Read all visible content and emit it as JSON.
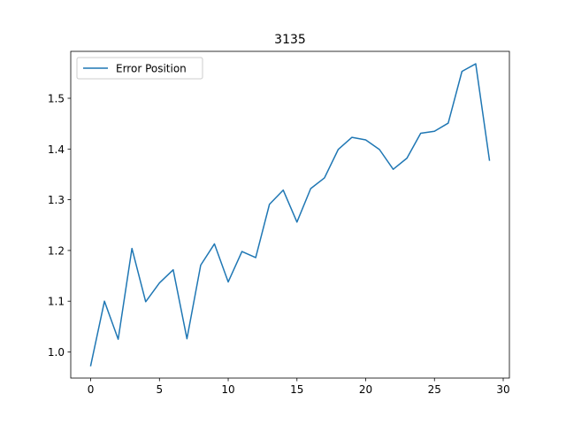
{
  "chart_data": {
    "type": "line",
    "title": "3135",
    "xlabel": "",
    "ylabel": "",
    "xlim": [
      -1.45,
      30.45
    ],
    "ylim": [
      0.9485,
      1.5925
    ],
    "xticks": [
      0,
      5,
      10,
      15,
      20,
      25,
      30
    ],
    "xtick_labels": [
      "0",
      "5",
      "10",
      "15",
      "20",
      "25",
      "30"
    ],
    "yticks": [
      1.0,
      1.1,
      1.2,
      1.3,
      1.4,
      1.5
    ],
    "ytick_labels": [
      "1.0",
      "1.1",
      "1.2",
      "1.3",
      "1.4",
      "1.5"
    ],
    "grid": false,
    "legend_position": "upper left",
    "series": [
      {
        "name": "Error Position",
        "color": "#1f77b4",
        "x": [
          0,
          1,
          2,
          3,
          4,
          5,
          6,
          7,
          8,
          9,
          10,
          11,
          12,
          13,
          14,
          15,
          16,
          17,
          18,
          19,
          20,
          21,
          22,
          23,
          24,
          25,
          26,
          27,
          28,
          29
        ],
        "values": [
          0.973,
          1.1,
          1.025,
          1.204,
          1.099,
          1.136,
          1.162,
          1.026,
          1.171,
          1.213,
          1.138,
          1.198,
          1.186,
          1.291,
          1.319,
          1.256,
          1.322,
          1.343,
          1.399,
          1.423,
          1.418,
          1.399,
          1.36,
          1.382,
          1.431,
          1.435,
          1.451,
          1.553,
          1.568,
          1.378
        ]
      }
    ]
  }
}
